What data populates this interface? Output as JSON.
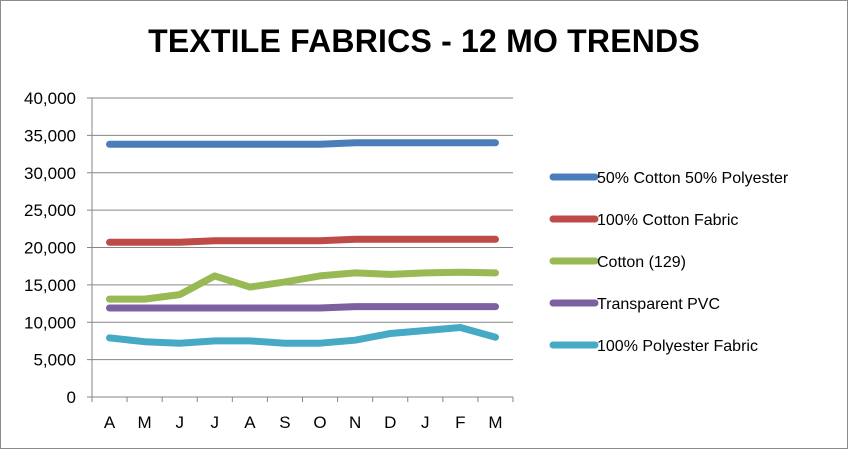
{
  "chart_data": {
    "type": "line",
    "title": "TEXTILE FABRICS - 12 MO TRENDS",
    "xlabel": "",
    "ylabel": "",
    "categories": [
      "A",
      "M",
      "J",
      "J",
      "A",
      "S",
      "O",
      "N",
      "D",
      "J",
      "F",
      "M"
    ],
    "ylim": [
      0,
      40000
    ],
    "yticks": [
      0,
      5000,
      10000,
      15000,
      20000,
      25000,
      30000,
      35000,
      40000
    ],
    "ytick_labels": [
      "0",
      "5,000",
      "10,000",
      "15,000",
      "20,000",
      "25,000",
      "30,000",
      "35,000",
      "40,000"
    ],
    "grid": "horizontal",
    "legend_position": "right",
    "series": [
      {
        "name": "50% Cotton 50% Polyester",
        "color": "#4a7ebb",
        "values": [
          33800,
          33800,
          33800,
          33800,
          33800,
          33800,
          33800,
          34000,
          34000,
          34000,
          34000,
          34000
        ]
      },
      {
        "name": "100% Cotton Fabric",
        "color": "#be4b48",
        "values": [
          20700,
          20700,
          20700,
          20900,
          20900,
          20900,
          20900,
          21100,
          21100,
          21100,
          21100,
          21100
        ]
      },
      {
        "name": "Cotton (129)",
        "color": "#98b954",
        "values": [
          13100,
          13100,
          13700,
          16200,
          14700,
          15400,
          16200,
          16600,
          16400,
          16600,
          16700,
          16600
        ]
      },
      {
        "name": "Transparent PVC",
        "color": "#7d60a0",
        "values": [
          11900,
          11900,
          11900,
          11900,
          11900,
          11900,
          11900,
          12100,
          12100,
          12100,
          12100,
          12100
        ]
      },
      {
        "name": "100% Polyester Fabric",
        "color": "#46aac5",
        "values": [
          7900,
          7400,
          7200,
          7500,
          7500,
          7200,
          7200,
          7600,
          8500,
          8900,
          9300,
          8000
        ]
      }
    ]
  }
}
